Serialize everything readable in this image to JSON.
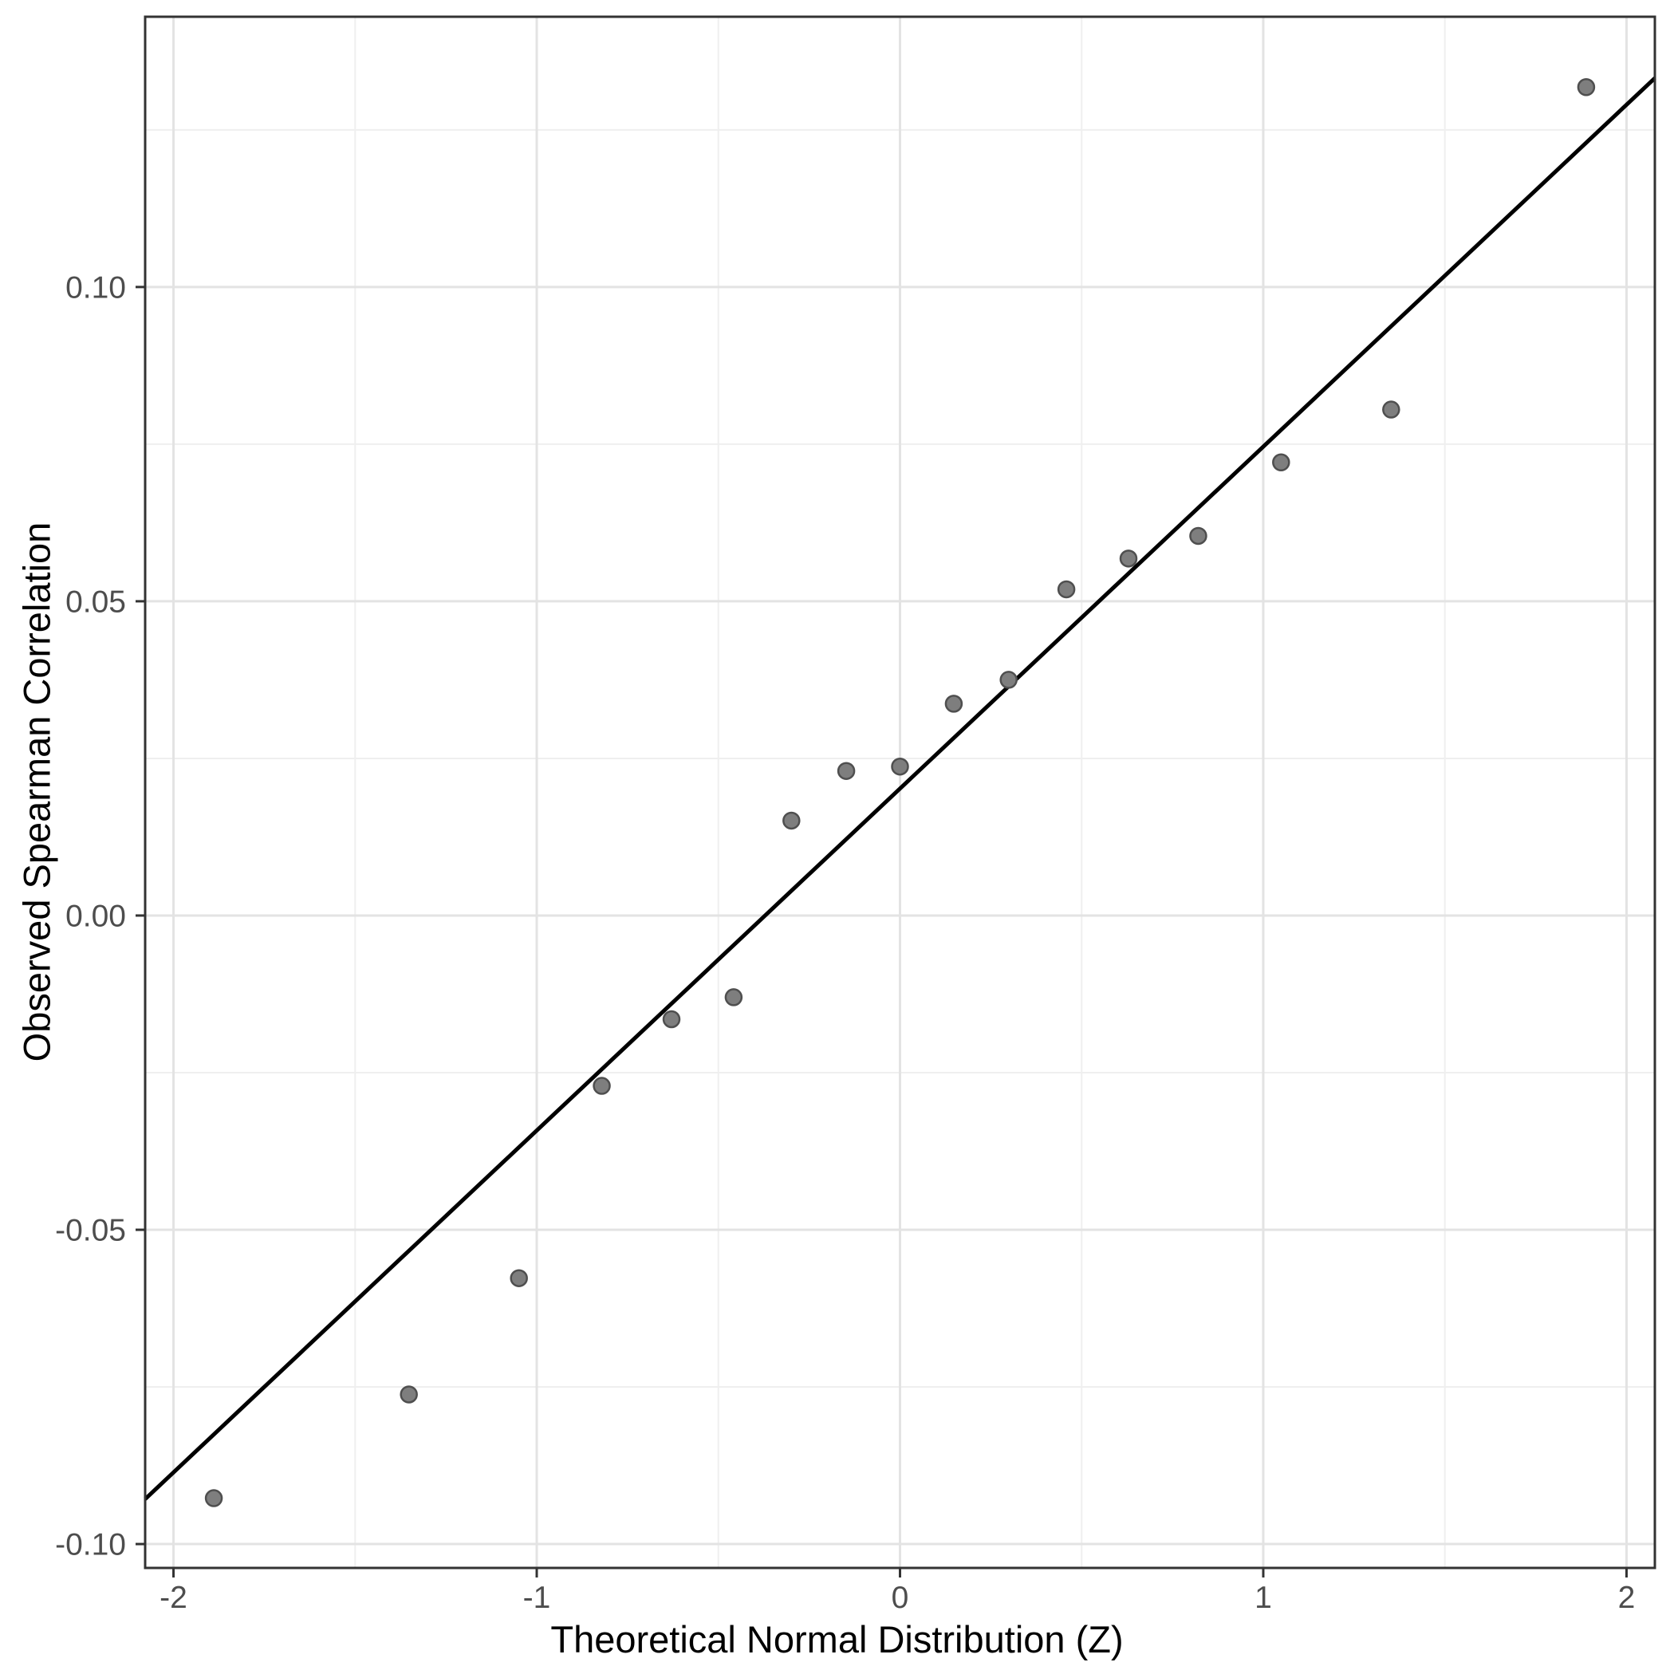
{
  "chart_data": {
    "type": "scatter",
    "title": "",
    "xlabel": "Theoretical Normal Distribution (Z)",
    "ylabel": "Observed Spearman Correlation",
    "xlim": [
      -2.078,
      2.078
    ],
    "ylim": [
      -0.1038,
      0.143
    ],
    "grid": true,
    "legend": false,
    "x_major_ticks": [
      -2,
      -1,
      0,
      1,
      2
    ],
    "x_tick_labels": [
      "-2",
      "-1",
      "0",
      "1",
      "2"
    ],
    "x_minor_ticks": [
      -1.5,
      -0.5,
      0.5,
      1.5
    ],
    "y_major_ticks": [
      -0.1,
      -0.05,
      0.0,
      0.05,
      0.1
    ],
    "y_tick_labels": [
      "-0.10",
      "-0.05",
      "0.00",
      "0.05",
      "0.10"
    ],
    "y_minor_ticks": [
      -0.075,
      -0.025,
      0.025,
      0.075,
      0.125
    ],
    "points": [
      [
        -1.889,
        -0.0927
      ],
      [
        -1.352,
        -0.0762
      ],
      [
        -1.049,
        -0.0577
      ],
      [
        -0.821,
        -0.0271
      ],
      [
        -0.629,
        -0.0165
      ],
      [
        -0.458,
        -0.013
      ],
      [
        -0.299,
        0.0151
      ],
      [
        -0.148,
        0.023
      ],
      [
        0.0,
        0.0237
      ],
      [
        0.148,
        0.0337
      ],
      [
        0.299,
        0.0375
      ],
      [
        0.458,
        0.0519
      ],
      [
        0.629,
        0.0568
      ],
      [
        0.821,
        0.0604
      ],
      [
        1.049,
        0.0721
      ],
      [
        1.352,
        0.0805
      ],
      [
        1.889,
        0.1318
      ]
    ],
    "reference_line": {
      "slope": 0.0544,
      "intercept": 0.0202
    },
    "colors": {
      "background": "#FFFFFF",
      "panel_border": "#333333",
      "grid_major": "#E3E3E3",
      "grid_minor": "#EFEFEF",
      "point_fill": "#7E7E7E",
      "point_stroke": "#4F4F4F",
      "reference_line": "#000000",
      "tick_mark": "#333333",
      "tick_label": "#4D4D4D",
      "axis_title": "#000000"
    }
  }
}
